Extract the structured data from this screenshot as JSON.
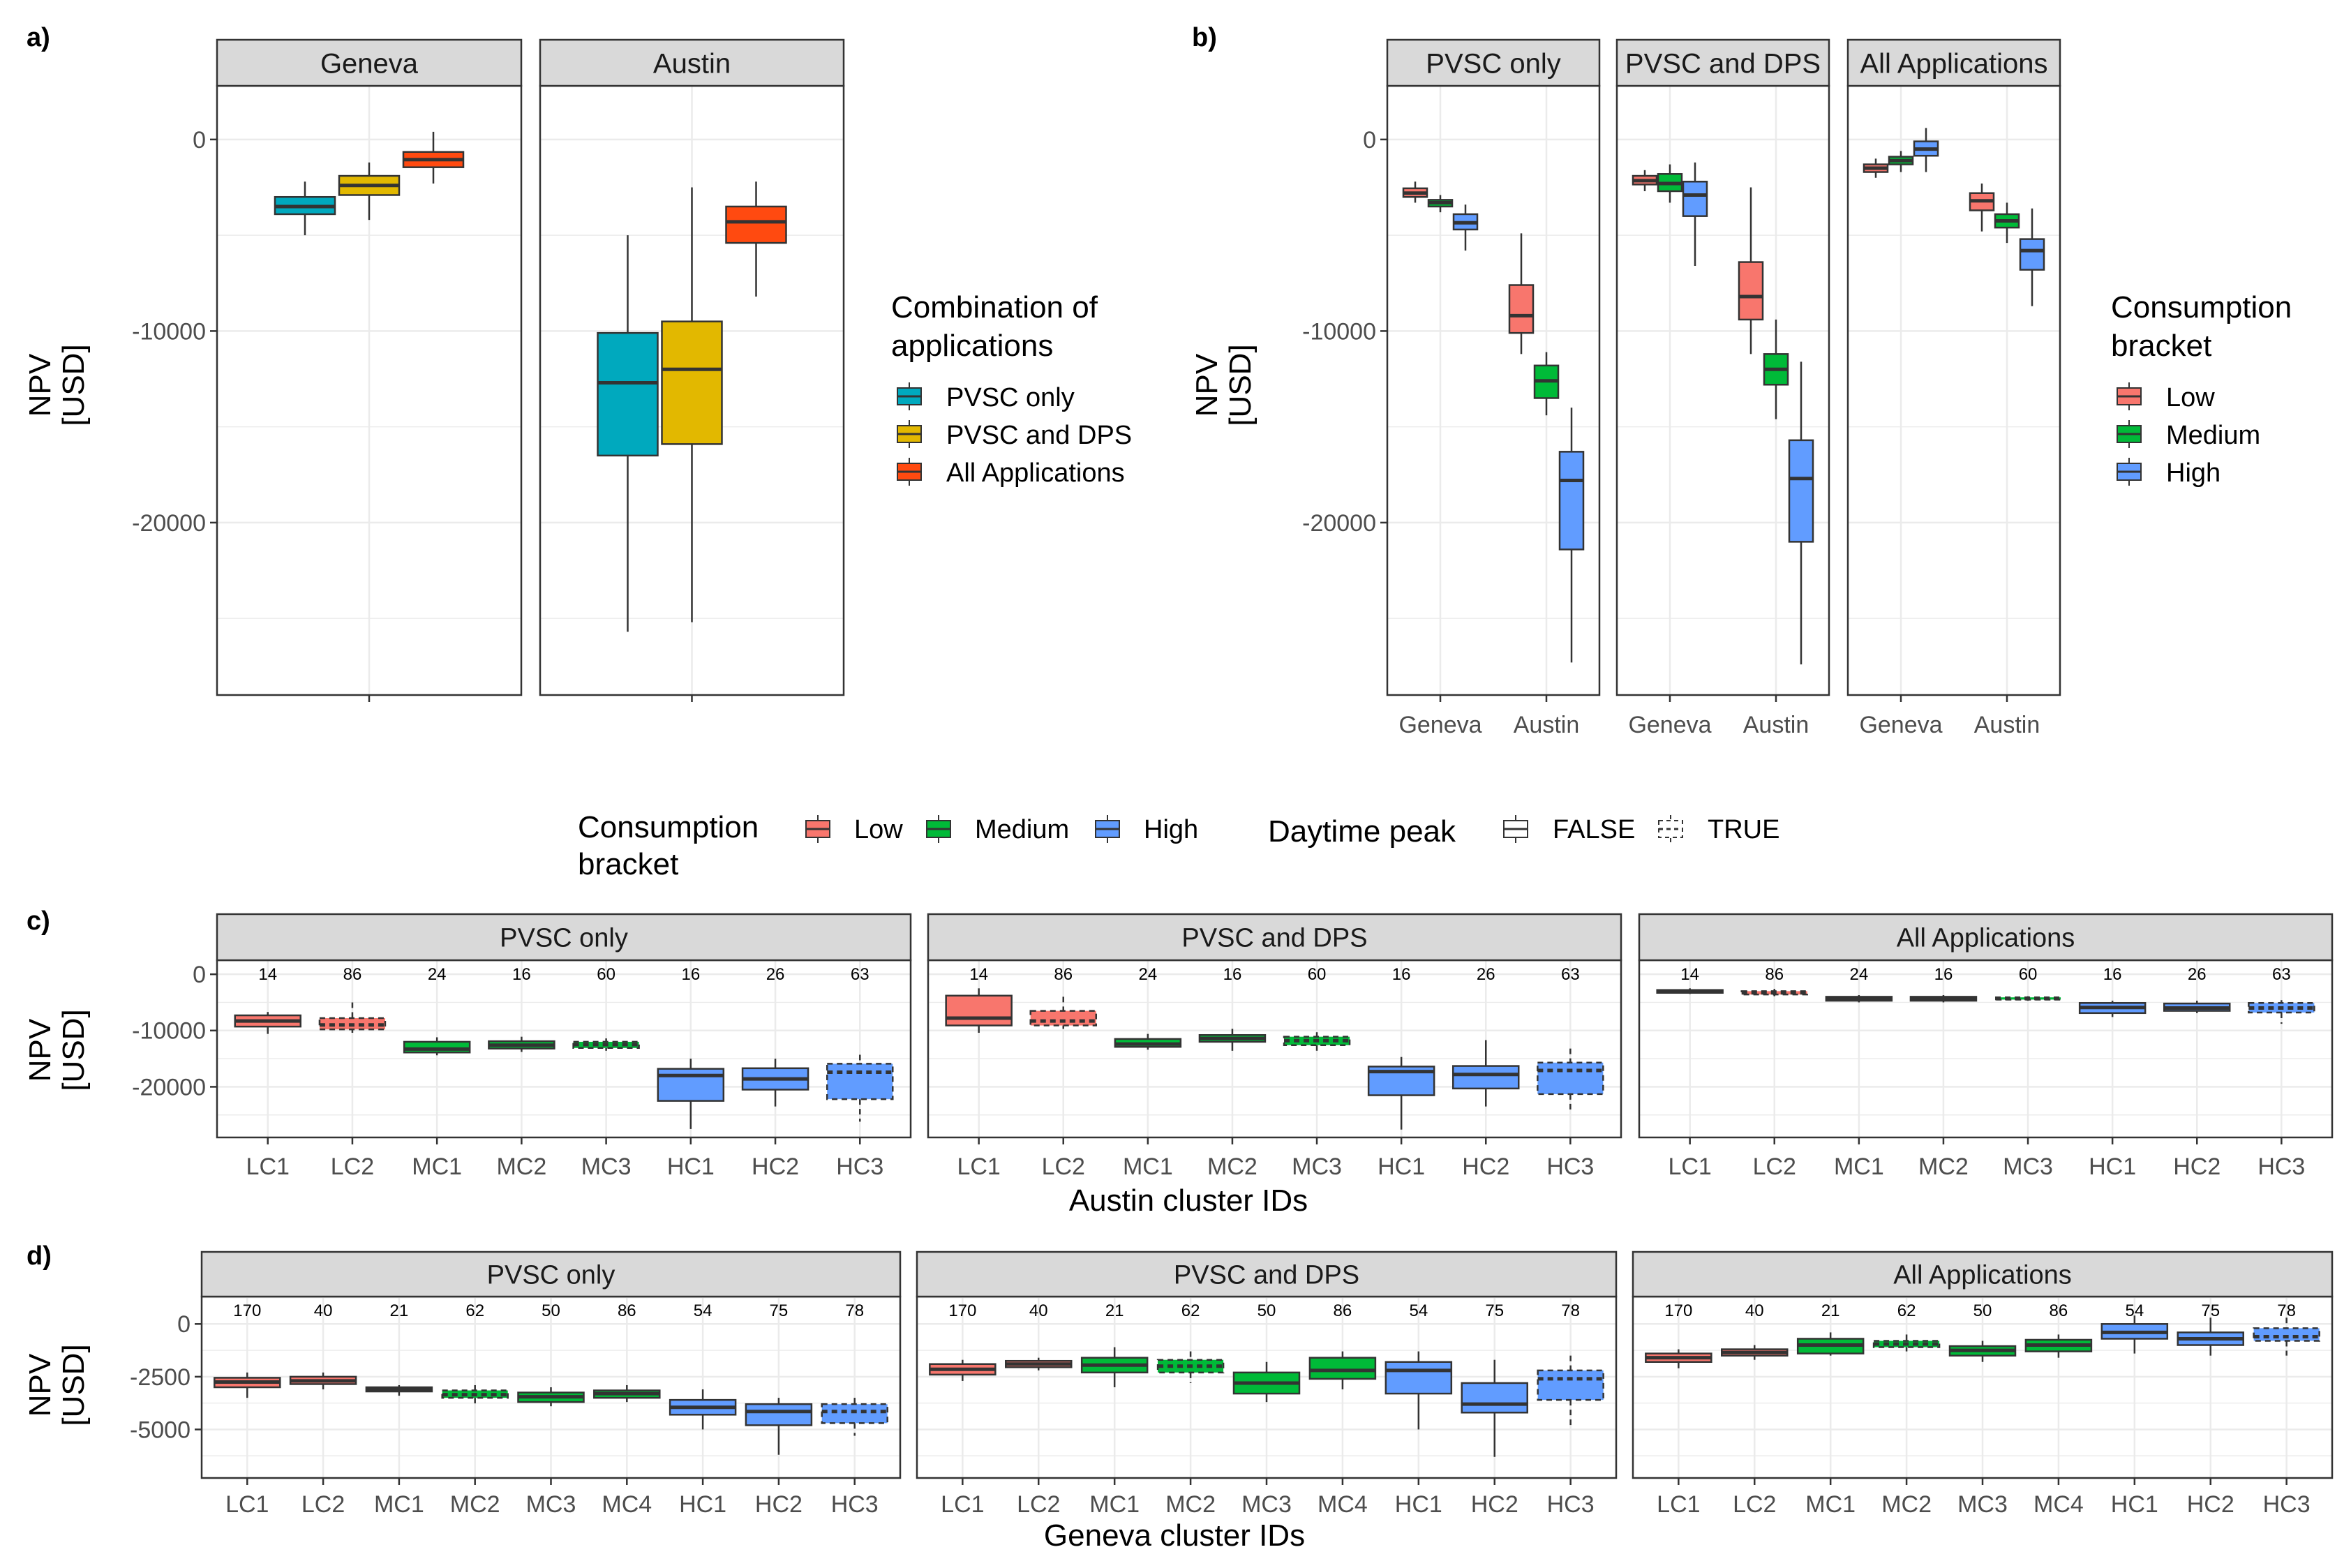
{
  "colors": {
    "pvsc_only": "#00A9BE",
    "pvsc_and_dps": "#E2B800",
    "all_apps": "#FF4A10",
    "low": "#F8766D",
    "medium": "#00BA38",
    "high": "#619CFF",
    "strip_bg": "#D9D9D9",
    "grid": "#EBEBEB",
    "axis_text": "#4D4D4D"
  },
  "panel_labels": {
    "a": "a)",
    "b": "b)",
    "c": "c)",
    "d": "d)"
  },
  "legends": {
    "applications": {
      "title1": "Combination of",
      "title2": "applications",
      "items": [
        "PVSC only",
        "PVSC and DPS",
        "All Applications"
      ]
    },
    "consumption": {
      "title1": "Consumption",
      "title2": "bracket",
      "items": [
        "Low",
        "Medium",
        "High"
      ]
    },
    "daytime_peak": {
      "title": "Daytime peak",
      "items": [
        "FALSE",
        "TRUE"
      ]
    }
  },
  "chart_data": [
    {
      "id": "a",
      "type": "box",
      "ylabel": "NPV [USD]",
      "ylim": [
        -29000,
        2800
      ],
      "yticks": [
        0,
        -10000,
        -20000
      ],
      "ytick_labels": [
        "0",
        "-10000",
        "-20000"
      ],
      "facets": [
        {
          "strip": "Geneva",
          "boxes": [
            {
              "group": "PVSC only",
              "min": -5000,
              "q1": -3900,
              "median": -3500,
              "q3": -3000,
              "max": -2200
            },
            {
              "group": "PVSC and DPS",
              "min": -4200,
              "q1": -2900,
              "median": -2400,
              "q3": -1900,
              "max": -1200
            },
            {
              "group": "All Applications",
              "min": -2300,
              "q1": -1450,
              "median": -1050,
              "q3": -650,
              "max": 400
            }
          ]
        },
        {
          "strip": "Austin",
          "boxes": [
            {
              "group": "PVSC only",
              "min": -25700,
              "q1": -16500,
              "median": -12700,
              "q3": -10100,
              "max": -5000
            },
            {
              "group": "PVSC and DPS",
              "min": -25200,
              "q1": -15900,
              "median": -12000,
              "q3": -9500,
              "max": -2500
            },
            {
              "group": "All Applications",
              "min": -8200,
              "q1": -5400,
              "median": -4300,
              "q3": -3500,
              "max": -2200
            }
          ]
        }
      ]
    },
    {
      "id": "b",
      "type": "box",
      "ylabel": "NPV [USD]",
      "ylim": [
        -29000,
        2800
      ],
      "yticks": [
        0,
        -10000,
        -20000
      ],
      "ytick_labels": [
        "0",
        "-10000",
        "-20000"
      ],
      "xticks": [
        "Geneva",
        "Austin"
      ],
      "facets": [
        {
          "strip": "PVSC only",
          "boxes": [
            {
              "city": "Geneva",
              "bracket": "Low",
              "min": -3300,
              "q1": -3000,
              "median": -2800,
              "q3": -2550,
              "max": -2200
            },
            {
              "city": "Geneva",
              "bracket": "Medium",
              "min": -3800,
              "q1": -3500,
              "median": -3300,
              "q3": -3150,
              "max": -2900
            },
            {
              "city": "Geneva",
              "bracket": "High",
              "min": -5800,
              "q1": -4700,
              "median": -4350,
              "q3": -3900,
              "max": -3400
            },
            {
              "city": "Austin",
              "bracket": "Low",
              "min": -11200,
              "q1": -10100,
              "median": -9200,
              "q3": -7600,
              "max": -4900
            },
            {
              "city": "Austin",
              "bracket": "Medium",
              "min": -14400,
              "q1": -13500,
              "median": -12600,
              "q3": -11800,
              "max": -11100
            },
            {
              "city": "Austin",
              "bracket": "High",
              "min": -27300,
              "q1": -21400,
              "median": -17800,
              "q3": -16300,
              "max": -14000
            }
          ]
        },
        {
          "strip": "PVSC and DPS",
          "boxes": [
            {
              "city": "Geneva",
              "bracket": "Low",
              "min": -2700,
              "q1": -2350,
              "median": -2150,
              "q3": -1900,
              "max": -1600
            },
            {
              "city": "Geneva",
              "bracket": "Medium",
              "min": -3300,
              "q1": -2700,
              "median": -2300,
              "q3": -1800,
              "max": -1300
            },
            {
              "city": "Geneva",
              "bracket": "High",
              "min": -6600,
              "q1": -4000,
              "median": -2900,
              "q3": -2200,
              "max": -1200
            },
            {
              "city": "Austin",
              "bracket": "Low",
              "min": -11200,
              "q1": -9400,
              "median": -8200,
              "q3": -6400,
              "max": -2500
            },
            {
              "city": "Austin",
              "bracket": "Medium",
              "min": -14600,
              "q1": -12800,
              "median": -12000,
              "q3": -11200,
              "max": -9400
            },
            {
              "city": "Austin",
              "bracket": "High",
              "min": -27400,
              "q1": -21000,
              "median": -17700,
              "q3": -15700,
              "max": -11600
            }
          ]
        },
        {
          "strip": "All Applications",
          "boxes": [
            {
              "city": "Geneva",
              "bracket": "Low",
              "min": -2000,
              "q1": -1700,
              "median": -1500,
              "q3": -1300,
              "max": -1000
            },
            {
              "city": "Geneva",
              "bracket": "Medium",
              "min": -1700,
              "q1": -1300,
              "median": -1100,
              "q3": -900,
              "max": -600
            },
            {
              "city": "Geneva",
              "bracket": "High",
              "min": -1700,
              "q1": -850,
              "median": -500,
              "q3": -100,
              "max": 600
            },
            {
              "city": "Austin",
              "bracket": "Low",
              "min": -4800,
              "q1": -3700,
              "median": -3200,
              "q3": -2800,
              "max": -2300
            },
            {
              "city": "Austin",
              "bracket": "Medium",
              "min": -5400,
              "q1": -4600,
              "median": -4250,
              "q3": -3900,
              "max": -3300
            },
            {
              "city": "Austin",
              "bracket": "High",
              "min": -8700,
              "q1": -6800,
              "median": -5800,
              "q3": -5200,
              "max": -3600
            }
          ]
        }
      ]
    },
    {
      "id": "c",
      "type": "box",
      "ylabel": "NPV [USD]",
      "xlabel": "Austin cluster IDs",
      "ylim": [
        -29000,
        2500
      ],
      "yticks": [
        0,
        -10000,
        -20000
      ],
      "ytick_labels": [
        "0",
        "-10000",
        "-20000"
      ],
      "clusters": [
        "LC1",
        "LC2",
        "MC1",
        "MC2",
        "MC3",
        "HC1",
        "HC2",
        "HC3"
      ],
      "counts": [
        "14",
        "86",
        "24",
        "16",
        "60",
        "16",
        "26",
        "63"
      ],
      "brackets": [
        "Low",
        "Low",
        "Medium",
        "Medium",
        "Medium",
        "High",
        "High",
        "High"
      ],
      "daytime_peak": [
        false,
        true,
        false,
        false,
        true,
        false,
        false,
        true
      ],
      "facets": [
        {
          "strip": "PVSC only",
          "boxes": [
            {
              "min": -10600,
              "q1": -9300,
              "median": -8300,
              "q3": -7300,
              "max": -6700
            },
            {
              "min": -10400,
              "q1": -9800,
              "median": -9000,
              "q3": -7800,
              "max": -5000
            },
            {
              "min": -14400,
              "q1": -13900,
              "median": -13300,
              "q3": -12000,
              "max": -11200
            },
            {
              "min": -13800,
              "q1": -13200,
              "median": -12600,
              "q3": -11900,
              "max": -11100
            },
            {
              "min": -13600,
              "q1": -13100,
              "median": -12500,
              "q3": -12000,
              "max": -11400
            },
            {
              "min": -27500,
              "q1": -22500,
              "median": -18000,
              "q3": -16800,
              "max": -15000
            },
            {
              "min": -23500,
              "q1": -20500,
              "median": -18600,
              "q3": -16700,
              "max": -15000
            },
            {
              "min": -26200,
              "q1": -22200,
              "median": -17400,
              "q3": -15900,
              "max": -14300
            }
          ]
        },
        {
          "strip": "PVSC and DPS",
          "boxes": [
            {
              "min": -10400,
              "q1": -9100,
              "median": -7800,
              "q3": -3800,
              "max": -2500
            },
            {
              "min": -9700,
              "q1": -9100,
              "median": -8300,
              "q3": -6500,
              "max": -4000
            },
            {
              "min": -13400,
              "q1": -12900,
              "median": -12400,
              "q3": -11500,
              "max": -10600
            },
            {
              "min": -13600,
              "q1": -12000,
              "median": -11400,
              "q3": -10800,
              "max": -9700
            },
            {
              "min": -13900,
              "q1": -12600,
              "median": -11800,
              "q3": -11100,
              "max": -10300
            },
            {
              "min": -27600,
              "q1": -21500,
              "median": -17300,
              "q3": -16400,
              "max": -14700
            },
            {
              "min": -23500,
              "q1": -20300,
              "median": -17800,
              "q3": -16300,
              "max": -11700
            },
            {
              "min": -24500,
              "q1": -21300,
              "median": -17100,
              "q3": -15700,
              "max": -13200
            }
          ]
        },
        {
          "strip": "All Applications",
          "boxes": [
            {
              "min": -3500,
              "q1": -3300,
              "median": -3050,
              "q3": -2800,
              "max": -2500
            },
            {
              "min": -3900,
              "q1": -3600,
              "median": -3300,
              "q3": -3000,
              "max": -2600
            },
            {
              "min": -5000,
              "q1": -4700,
              "median": -4400,
              "q3": -4000,
              "max": -3700
            },
            {
              "min": -5000,
              "q1": -4700,
              "median": -4350,
              "q3": -4000,
              "max": -3700
            },
            {
              "min": -4700,
              "q1": -4500,
              "median": -4300,
              "q3": -4100,
              "max": -3900
            },
            {
              "min": -7600,
              "q1": -6900,
              "median": -5900,
              "q3": -5100,
              "max": -4700
            },
            {
              "min": -6900,
              "q1": -6500,
              "median": -6000,
              "q3": -5200,
              "max": -4700
            },
            {
              "min": -8800,
              "q1": -6800,
              "median": -6000,
              "q3": -5100,
              "max": -4600
            }
          ]
        }
      ]
    },
    {
      "id": "d",
      "type": "box",
      "ylabel": "NPV [USD]",
      "xlabel": "Geneva cluster IDs",
      "ylim": [
        -7300,
        1300
      ],
      "yticks": [
        0,
        -2500,
        -5000
      ],
      "ytick_labels": [
        "0",
        "-2500",
        "-5000"
      ],
      "clusters": [
        "LC1",
        "LC2",
        "MC1",
        "MC2",
        "MC3",
        "MC4",
        "HC1",
        "HC2",
        "HC3"
      ],
      "counts": [
        "170",
        "40",
        "21",
        "62",
        "50",
        "86",
        "54",
        "75",
        "78"
      ],
      "brackets": [
        "Low",
        "Low",
        "Medium",
        "Medium",
        "Medium",
        "Medium",
        "High",
        "High",
        "High"
      ],
      "daytime_peak": [
        false,
        false,
        false,
        true,
        false,
        false,
        false,
        false,
        true
      ],
      "facets": [
        {
          "strip": "PVSC only",
          "boxes": [
            {
              "min": -3500,
              "q1": -3000,
              "median": -2750,
              "q3": -2550,
              "max": -2300
            },
            {
              "min": -3100,
              "q1": -2850,
              "median": -2700,
              "q3": -2500,
              "max": -2300
            },
            {
              "min": -3400,
              "q1": -3200,
              "median": -3100,
              "q3": -3000,
              "max": -2900
            },
            {
              "min": -3800,
              "q1": -3500,
              "median": -3350,
              "q3": -3150,
              "max": -2900
            },
            {
              "min": -3900,
              "q1": -3700,
              "median": -3450,
              "q3": -3250,
              "max": -3000
            },
            {
              "min": -3700,
              "q1": -3500,
              "median": -3300,
              "q3": -3150,
              "max": -2900
            },
            {
              "min": -5000,
              "q1": -4300,
              "median": -3950,
              "q3": -3600,
              "max": -3100
            },
            {
              "min": -6200,
              "q1": -4800,
              "median": -4150,
              "q3": -3800,
              "max": -3500
            },
            {
              "min": -5300,
              "q1": -4700,
              "median": -4150,
              "q3": -3800,
              "max": -3500
            }
          ]
        },
        {
          "strip": "PVSC and DPS",
          "boxes": [
            {
              "min": -2700,
              "q1": -2400,
              "median": -2150,
              "q3": -1900,
              "max": -1700
            },
            {
              "min": -2200,
              "q1": -2050,
              "median": -1900,
              "q3": -1750,
              "max": -1600
            },
            {
              "min": -3000,
              "q1": -2300,
              "median": -1950,
              "q3": -1600,
              "max": -1100
            },
            {
              "min": -2800,
              "q1": -2300,
              "median": -2000,
              "q3": -1700,
              "max": -1300
            },
            {
              "min": -3700,
              "q1": -3300,
              "median": -2800,
              "q3": -2300,
              "max": -1800
            },
            {
              "min": -3100,
              "q1": -2600,
              "median": -2200,
              "q3": -1600,
              "max": -1300
            },
            {
              "min": -5000,
              "q1": -3300,
              "median": -2200,
              "q3": -1800,
              "max": -1300
            },
            {
              "min": -6300,
              "q1": -4200,
              "median": -3800,
              "q3": -2800,
              "max": -1700
            },
            {
              "min": -4900,
              "q1": -3600,
              "median": -2600,
              "q3": -2200,
              "max": -1500
            }
          ]
        },
        {
          "strip": "All Applications",
          "boxes": [
            {
              "min": -2100,
              "q1": -1800,
              "median": -1600,
              "q3": -1400,
              "max": -1200
            },
            {
              "min": -1700,
              "q1": -1500,
              "median": -1350,
              "q3": -1200,
              "max": -1000
            },
            {
              "min": -1500,
              "q1": -1400,
              "median": -1000,
              "q3": -700,
              "max": -400
            },
            {
              "min": -1300,
              "q1": -1100,
              "median": -950,
              "q3": -800,
              "max": -500
            },
            {
              "min": -1800,
              "q1": -1500,
              "median": -1250,
              "q3": -1050,
              "max": -800
            },
            {
              "min": -1600,
              "q1": -1300,
              "median": -1000,
              "q3": -750,
              "max": -500
            },
            {
              "min": -1400,
              "q1": -700,
              "median": -400,
              "q3": 0,
              "max": 400
            },
            {
              "min": -1500,
              "q1": -1000,
              "median": -700,
              "q3": -400,
              "max": 300
            },
            {
              "min": -1500,
              "q1": -800,
              "median": -600,
              "q3": -200,
              "max": 300
            }
          ]
        }
      ]
    }
  ]
}
